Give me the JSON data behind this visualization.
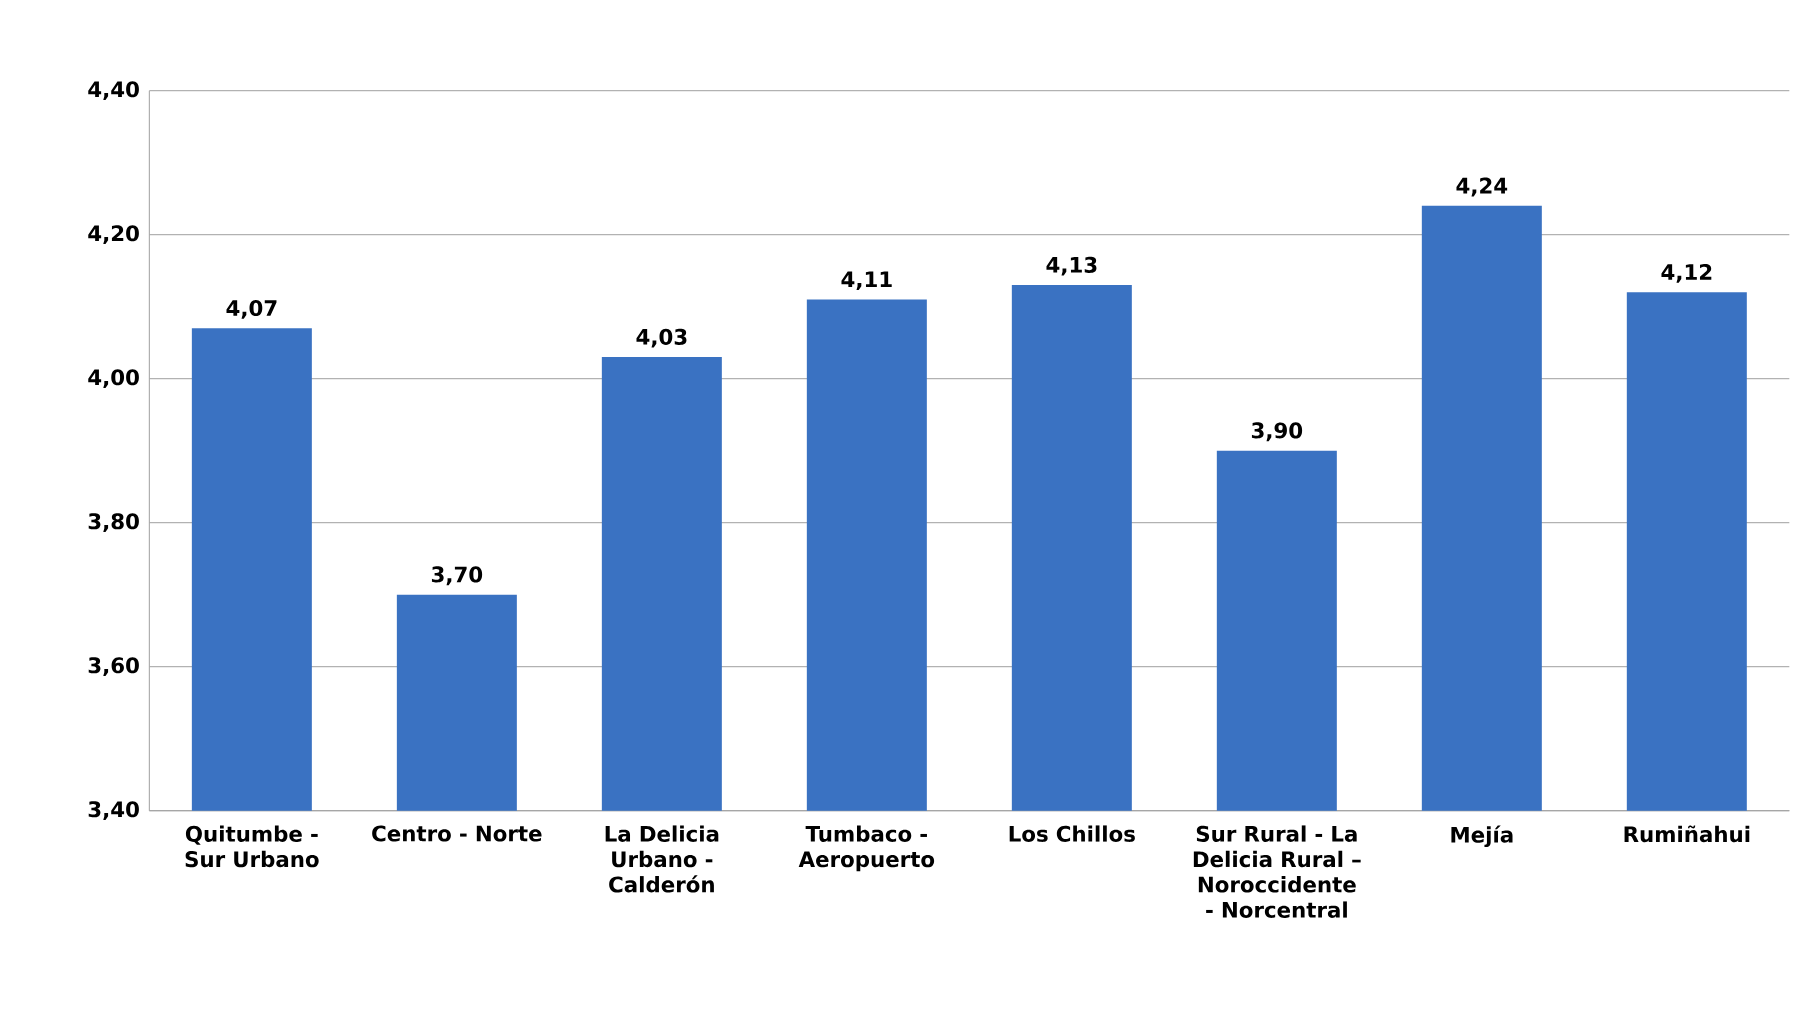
{
  "chart_data": {
    "type": "bar",
    "categories": [
      "Quitumbe - Sur Urbano",
      "Centro - Norte",
      "La Delicia Urbano - Calderón",
      "Tumbaco - Aeropuerto",
      "Los Chillos",
      "Sur Rural - La Delicia Rural – Noroccidente - Norcentral",
      "Mejía",
      "Rumiñahui"
    ],
    "values": [
      4.07,
      3.7,
      4.03,
      4.11,
      4.13,
      3.9,
      4.24,
      4.12
    ],
    "value_labels": [
      "4,07",
      "3,70",
      "4,03",
      "4,11",
      "4,13",
      "3,90",
      "4,24",
      "4,12"
    ],
    "color": "#3a72c2",
    "ylim": [
      3.4,
      4.4
    ],
    "yticks": [
      {
        "value": 3.4,
        "label": "3,40"
      },
      {
        "value": 3.6,
        "label": "3,60"
      },
      {
        "value": 3.8,
        "label": "3,80"
      },
      {
        "value": 4.0,
        "label": "4,00"
      },
      {
        "value": 4.2,
        "label": "4,20"
      },
      {
        "value": 4.4,
        "label": "4,40"
      }
    ],
    "grid": "y"
  }
}
